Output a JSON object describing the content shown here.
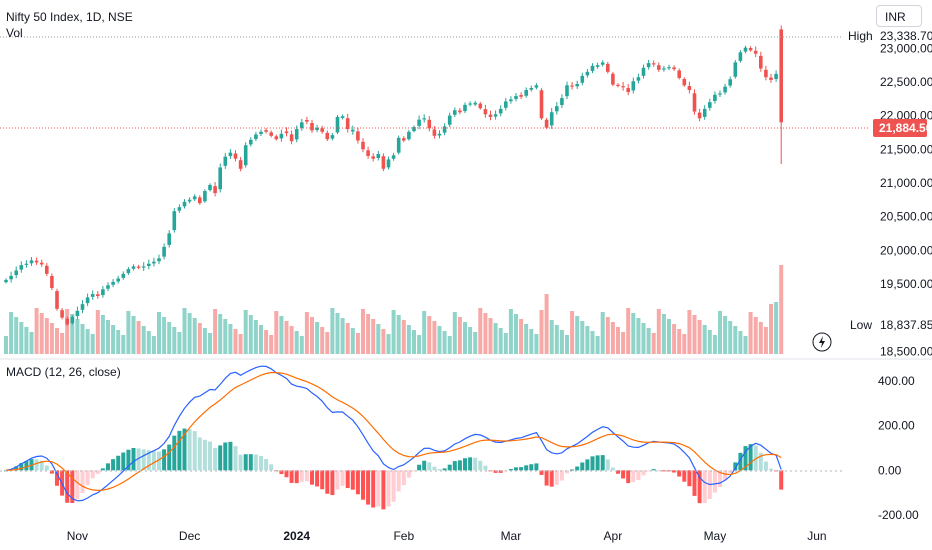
{
  "header": {
    "symbol_title": "Nifty 50 Index, 1D, NSE",
    "volume_label": "Vol",
    "macd_label": "MACD (12, 26, close)",
    "currency": "INR"
  },
  "price_markers": {
    "high_label": "High",
    "high_value": "23,338.70",
    "low_label": "Low",
    "low_value": "18,837.85",
    "last_value": "21,884.50"
  },
  "colors": {
    "up": "#26a69a",
    "down": "#ef5350",
    "up_volume": "#8fd3c9",
    "down_volume": "#f7a9a7",
    "macd_line": "#2962ff",
    "signal_line": "#ff6d00",
    "hist_up_strong": "#26a69a",
    "hist_up_weak": "#b2dfdb",
    "hist_down_strong": "#ff5252",
    "hist_down_weak": "#ffcdd2"
  },
  "chart_data": [
    {
      "type": "candlestick",
      "title": "Nifty 50 Index, 1D, NSE",
      "y_unit": "INR",
      "ylim": [
        18400,
        23420
      ],
      "y_ticks": [
        "23,000.00",
        "22,500.00",
        "22,000.00",
        "21,500.00",
        "21,000.00",
        "20,500.00",
        "20,000.00",
        "19,500.00",
        "18,500.00"
      ],
      "y_tick_values": [
        23000,
        22500,
        22000,
        21500,
        21000,
        20500,
        20000,
        19500,
        18500
      ],
      "x_ticks": [
        "Nov",
        "Dec",
        "2024",
        "Feb",
        "Mar",
        "Apr",
        "May",
        "Jun"
      ],
      "x_tick_index": [
        14,
        36,
        57,
        78,
        99,
        119,
        139,
        159
      ],
      "grid": false,
      "close": [
        19560,
        19620,
        19700,
        19780,
        19800,
        19850,
        19820,
        19790,
        19650,
        19440,
        19130,
        19000,
        18900,
        19010,
        19100,
        19200,
        19300,
        19350,
        19320,
        19420,
        19480,
        19530,
        19580,
        19650,
        19720,
        19760,
        19740,
        19760,
        19800,
        19830,
        19880,
        20050,
        20250,
        20580,
        20640,
        20720,
        20750,
        20800,
        20700,
        20880,
        20970,
        20850,
        21230,
        21390,
        21450,
        21360,
        21210,
        21560,
        21640,
        21720,
        21760,
        21760,
        21700,
        21650,
        21730,
        21740,
        21620,
        21800,
        21900,
        21910,
        21780,
        21820,
        21760,
        21650,
        21710,
        21980,
        21990,
        21800,
        21790,
        21630,
        21500,
        21400,
        21360,
        21430,
        21210,
        21350,
        21410,
        21670,
        21630,
        21760,
        21830,
        21940,
        21960,
        21810,
        21700,
        21730,
        21840,
        22000,
        22080,
        22050,
        22160,
        22180,
        22190,
        22110,
        22020,
        21980,
        22020,
        22100,
        22210,
        22240,
        22290,
        22280,
        22380,
        22410,
        22450,
        21960,
        21820,
        22050,
        22140,
        22260,
        22450,
        22430,
        22470,
        22590,
        22650,
        22740,
        22750,
        22790,
        22650,
        22460,
        22440,
        22420,
        22350,
        22510,
        22570,
        22710,
        22780,
        22760,
        22680,
        22700,
        22720,
        22690,
        22560,
        22450,
        22380,
        22060,
        21960,
        22100,
        22200,
        22310,
        22330,
        22430,
        22540,
        22790,
        22940,
        23010,
        22970,
        22920,
        22700,
        22570,
        22530,
        22620,
        21900
      ],
      "volume_ylim": [
        0,
        0.89
      ]
    },
    {
      "type": "line",
      "title": "MACD (12, 26, close)",
      "ylim": [
        -250,
        470
      ],
      "y_ticks": [
        "400.00",
        "200.00",
        "0.00",
        "-200.00"
      ],
      "y_tick_values": [
        400,
        200,
        0,
        -200
      ],
      "series": []
    }
  ]
}
